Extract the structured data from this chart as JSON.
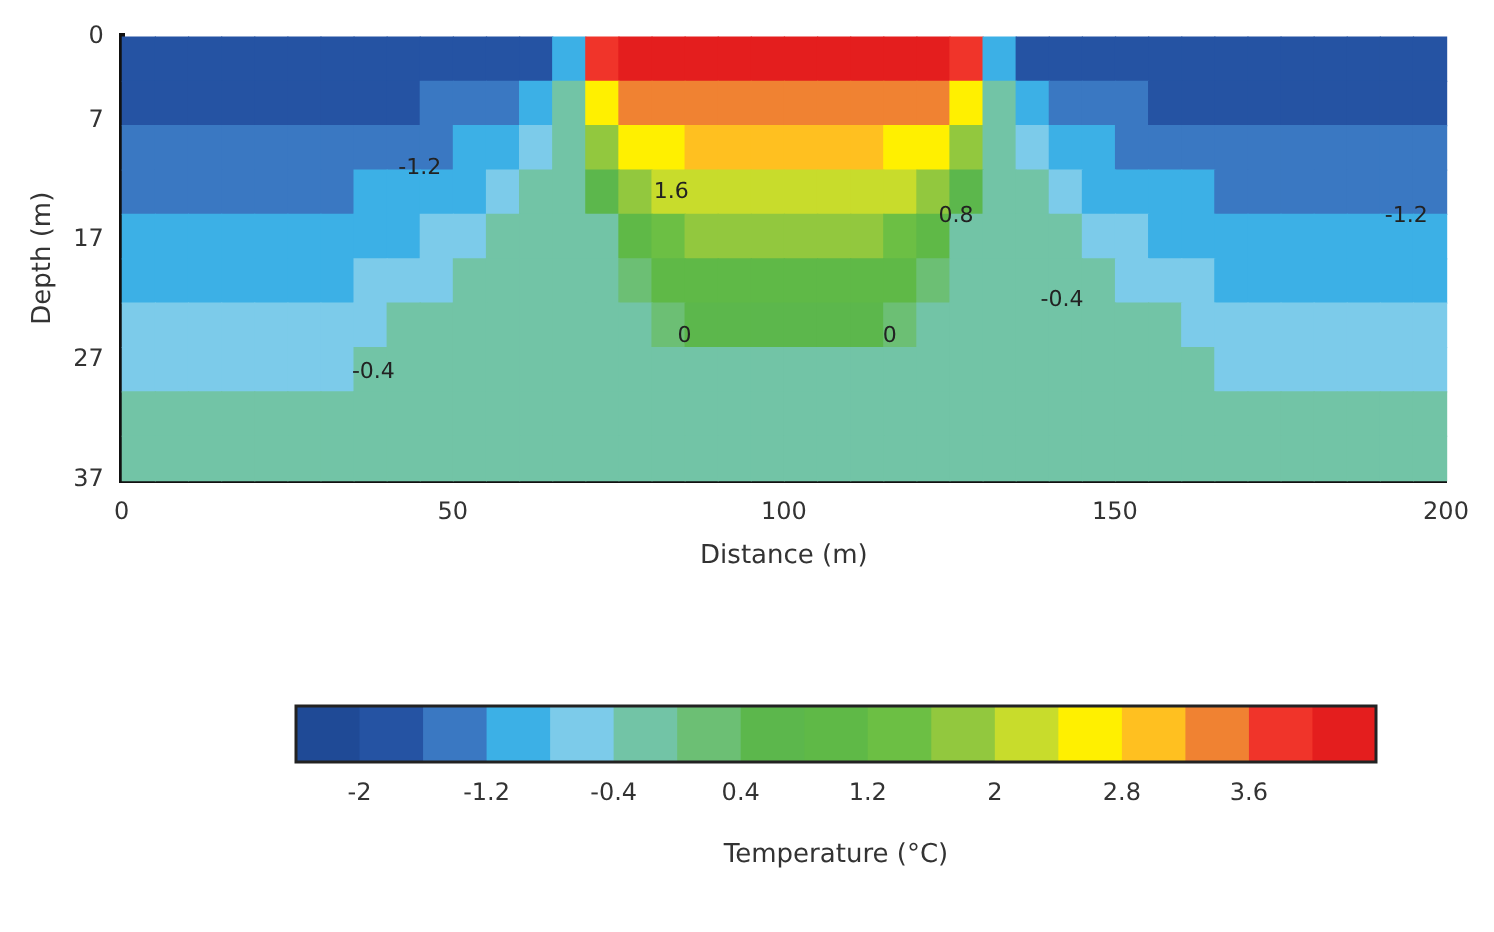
{
  "chart_data": {
    "type": "heatmap",
    "xlabel": "Distance (m)",
    "ylabel": "Depth (m)",
    "clabel": "Temperature (°C)",
    "x": [
      2.5,
      7.5,
      12.5,
      17.5,
      22.5,
      27.5,
      32.5,
      37.5,
      42.5,
      47.5,
      52.5,
      57.5,
      62.5,
      67.5,
      72.5,
      77.5,
      82.5,
      87.5,
      92.5,
      97.5,
      102.5,
      107.5,
      112.5,
      117.5,
      122.5,
      127.5,
      132.5,
      137.5,
      142.5,
      147.5,
      152.5,
      157.5,
      162.5,
      167.5,
      172.5,
      177.5,
      182.5,
      187.5,
      192.5,
      197.5
    ],
    "y": [
      1.85,
      5.55,
      9.25,
      12.95,
      16.65,
      20.35,
      24.05,
      27.75,
      31.45,
      35.15
    ],
    "xlim": [
      0,
      200
    ],
    "xticks": [
      0,
      50,
      100,
      150,
      200
    ],
    "ylim": [
      37,
      0
    ],
    "yticks": [
      0,
      7,
      17,
      27,
      37
    ],
    "cells": [
      [
        -1.8,
        -1.8,
        -1.8,
        -1.8,
        -1.8,
        -1.8,
        -1.8,
        -1.8,
        -1.8,
        -1.8,
        -1.8,
        -1.8,
        -1.8,
        -1.0,
        3.8,
        4.2,
        4.2,
        4.2,
        4.2,
        4.2,
        4.2,
        4.2,
        4.2,
        4.2,
        4.2,
        3.8,
        -1.0,
        -1.8,
        -1.8,
        -1.8,
        -1.8,
        -1.8,
        -1.8,
        -1.8,
        -1.8,
        -1.8,
        -1.8,
        -1.8,
        -1.8,
        -1.8
      ],
      [
        -1.8,
        -1.8,
        -1.8,
        -1.8,
        -1.8,
        -1.8,
        -1.8,
        -1.8,
        -1.8,
        -1.4,
        -1.4,
        -1.4,
        -1.0,
        -0.2,
        2.6,
        3.4,
        3.4,
        3.4,
        3.4,
        3.4,
        3.4,
        3.4,
        3.4,
        3.4,
        3.4,
        2.6,
        -0.2,
        -1.0,
        -1.4,
        -1.4,
        -1.4,
        -1.8,
        -1.8,
        -1.8,
        -1.8,
        -1.8,
        -1.8,
        -1.8,
        -1.8,
        -1.8
      ],
      [
        -1.4,
        -1.4,
        -1.4,
        -1.4,
        -1.4,
        -1.4,
        -1.4,
        -1.4,
        -1.4,
        -1.4,
        -1.0,
        -1.0,
        -0.6,
        -0.2,
        1.8,
        2.6,
        2.6,
        3.0,
        3.0,
        3.0,
        3.0,
        3.0,
        3.0,
        2.6,
        2.6,
        1.8,
        -0.2,
        -0.6,
        -1.0,
        -1.0,
        -1.4,
        -1.4,
        -1.4,
        -1.4,
        -1.4,
        -1.4,
        -1.4,
        -1.4,
        -1.4,
        -1.4
      ],
      [
        -1.4,
        -1.4,
        -1.4,
        -1.4,
        -1.4,
        -1.4,
        -1.4,
        -1.0,
        -1.0,
        -1.0,
        -1.0,
        -0.6,
        -0.2,
        -0.2,
        0.6,
        1.8,
        2.2,
        2.2,
        2.2,
        2.2,
        2.2,
        2.2,
        2.2,
        2.2,
        1.8,
        0.6,
        -0.2,
        -0.2,
        -0.6,
        -1.0,
        -1.0,
        -1.0,
        -1.0,
        -1.4,
        -1.4,
        -1.4,
        -1.4,
        -1.4,
        -1.4,
        -1.4
      ],
      [
        -1.0,
        -1.0,
        -1.0,
        -1.0,
        -1.0,
        -1.0,
        -1.0,
        -1.0,
        -1.0,
        -0.6,
        -0.6,
        -0.2,
        -0.2,
        -0.2,
        -0.2,
        1.0,
        1.4,
        1.8,
        1.8,
        1.8,
        1.8,
        1.8,
        1.8,
        1.4,
        1.0,
        -0.2,
        -0.2,
        -0.2,
        -0.2,
        -0.6,
        -0.6,
        -1.0,
        -1.0,
        -1.0,
        -1.0,
        -1.0,
        -1.0,
        -1.0,
        -1.0,
        -1.0
      ],
      [
        -1.0,
        -1.0,
        -1.0,
        -1.0,
        -1.0,
        -1.0,
        -1.0,
        -0.6,
        -0.6,
        -0.6,
        -0.2,
        -0.2,
        -0.2,
        -0.2,
        -0.2,
        0.2,
        1.0,
        1.0,
        1.0,
        1.0,
        1.0,
        1.0,
        1.0,
        1.0,
        0.2,
        -0.2,
        -0.2,
        -0.2,
        -0.2,
        -0.2,
        -0.6,
        -0.6,
        -0.6,
        -1.0,
        -1.0,
        -1.0,
        -1.0,
        -1.0,
        -1.0,
        -1.0
      ],
      [
        -0.6,
        -0.6,
        -0.6,
        -0.6,
        -0.6,
        -0.6,
        -0.6,
        -0.6,
        -0.2,
        -0.2,
        -0.2,
        -0.2,
        -0.2,
        -0.2,
        -0.2,
        -0.2,
        0.2,
        0.6,
        0.6,
        0.6,
        0.6,
        0.6,
        0.6,
        0.2,
        -0.2,
        -0.2,
        -0.2,
        -0.2,
        -0.2,
        -0.2,
        -0.2,
        -0.2,
        -0.6,
        -0.6,
        -0.6,
        -0.6,
        -0.6,
        -0.6,
        -0.6,
        -0.6
      ],
      [
        -0.6,
        -0.6,
        -0.6,
        -0.6,
        -0.6,
        -0.6,
        -0.6,
        -0.2,
        -0.2,
        -0.2,
        -0.2,
        -0.2,
        -0.2,
        -0.2,
        -0.2,
        -0.2,
        -0.2,
        -0.2,
        -0.2,
        -0.2,
        -0.2,
        -0.2,
        -0.2,
        -0.2,
        -0.2,
        -0.2,
        -0.2,
        -0.2,
        -0.2,
        -0.2,
        -0.2,
        -0.2,
        -0.2,
        -0.6,
        -0.6,
        -0.6,
        -0.6,
        -0.6,
        -0.6,
        -0.6
      ],
      [
        -0.2,
        -0.2,
        -0.2,
        -0.2,
        -0.2,
        -0.2,
        -0.2,
        -0.2,
        -0.2,
        -0.2,
        -0.2,
        -0.2,
        -0.2,
        -0.2,
        -0.2,
        -0.2,
        -0.2,
        -0.2,
        -0.2,
        -0.2,
        -0.2,
        -0.2,
        -0.2,
        -0.2,
        -0.2,
        -0.2,
        -0.2,
        -0.2,
        -0.2,
        -0.2,
        -0.2,
        -0.2,
        -0.2,
        -0.2,
        -0.2,
        -0.2,
        -0.2,
        -0.2,
        -0.2,
        -0.2
      ],
      [
        -0.2,
        -0.2,
        -0.2,
        -0.2,
        -0.2,
        -0.2,
        -0.2,
        -0.2,
        -0.2,
        -0.2,
        -0.2,
        -0.2,
        -0.2,
        -0.2,
        -0.2,
        -0.2,
        -0.2,
        -0.2,
        -0.2,
        -0.2,
        -0.2,
        -0.2,
        -0.2,
        -0.2,
        -0.2,
        -0.2,
        -0.2,
        -0.2,
        -0.2,
        -0.2,
        -0.2,
        -0.2,
        -0.2,
        -0.2,
        -0.2,
        -0.2,
        -0.2,
        -0.2,
        -0.2,
        -0.2
      ]
    ],
    "clim": [
      -2.4,
      4.4
    ],
    "cticks": [
      -2,
      -1.2,
      -0.4,
      0.4,
      1.2,
      2,
      2.8,
      3.6
    ],
    "colors": [
      "#1f4a96",
      "#2553a3",
      "#3a78c2",
      "#3cb0e6",
      "#7ccbea",
      "#72c4a6",
      "#6cbf74",
      "#5cb74c",
      "#5fb947",
      "#6cbf44",
      "#92c83e",
      "#c8dc2c",
      "#fff000",
      "#ffc020",
      "#f08232",
      "#f0342a",
      "#e41e1e"
    ],
    "annotations": [
      "-1.2",
      "-1.2",
      "-0.4",
      "-0.4",
      "0",
      "0",
      "1.6",
      "0.8"
    ]
  }
}
